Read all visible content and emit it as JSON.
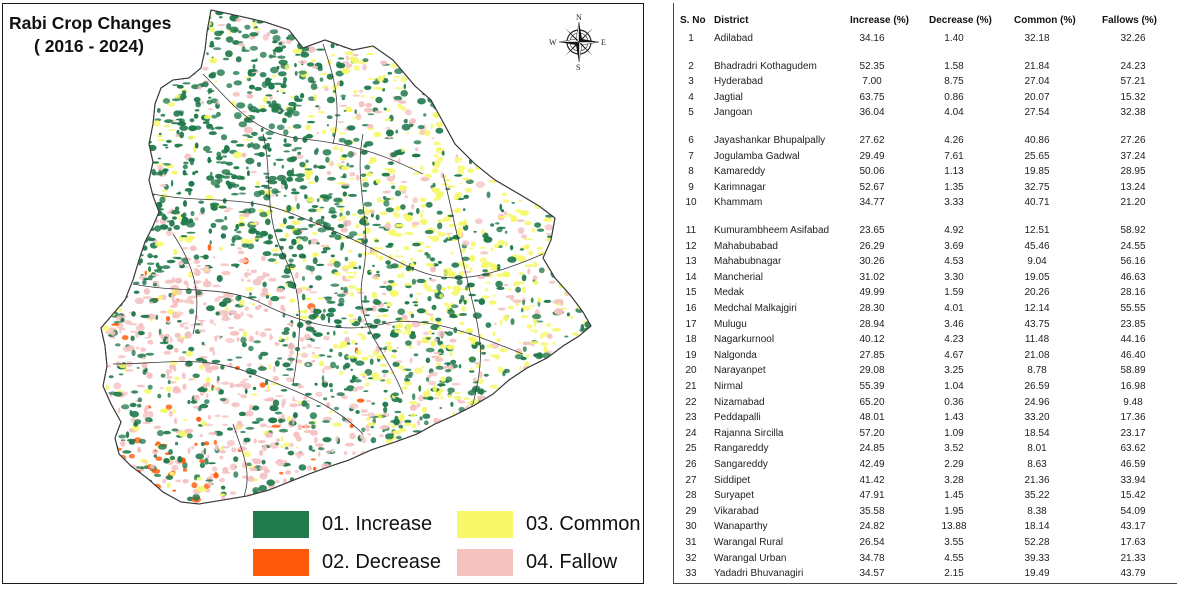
{
  "map": {
    "title": "Rabi Crop Changes",
    "subtitle": "( 2016 - 2024)",
    "compass": {
      "n": "N",
      "s": "S",
      "e": "E",
      "w": "W"
    },
    "colors": {
      "increase": "#217a4c",
      "decrease": "#ff5a0a",
      "common": "#f6f86a",
      "fallow": "#f5c1c1",
      "boundary": "#3a3a3a"
    },
    "legend": [
      {
        "label": "01. Increase",
        "color": "#217a4c"
      },
      {
        "label": "02. Decrease",
        "color": "#ff5a0a"
      },
      {
        "label": "03. Common",
        "color": "#f6f86a"
      },
      {
        "label": "04. Fallow",
        "color": "#f5c1c1"
      }
    ]
  },
  "table": {
    "headers": [
      "S. No",
      "District",
      "Increase (%)",
      "Decrease (%)",
      "Common (%)",
      "Fallows (%)"
    ],
    "rows": [
      {
        "sno": "1",
        "district": "Adilabad",
        "increase": "34.16",
        "decrease": "1.40",
        "common": "32.18",
        "fallows": "32.26"
      },
      {
        "sno": "2",
        "district": "Bhadradri Kothagudem",
        "increase": "52.35",
        "decrease": "1.58",
        "common": "21.84",
        "fallows": "24.23"
      },
      {
        "sno": "3",
        "district": "Hyderabad",
        "increase": "7.00",
        "decrease": "8.75",
        "common": "27.04",
        "fallows": "57.21"
      },
      {
        "sno": "4",
        "district": "Jagtial",
        "increase": "63.75",
        "decrease": "0.86",
        "common": "20.07",
        "fallows": "15.32"
      },
      {
        "sno": "5",
        "district": "Jangoan",
        "increase": "36.04",
        "decrease": "4.04",
        "common": "27.54",
        "fallows": "32.38"
      },
      {
        "sno": "6",
        "district": "Jayashankar Bhupalpally",
        "increase": "27.62",
        "decrease": "4.26",
        "common": "40.86",
        "fallows": "27.26"
      },
      {
        "sno": "7",
        "district": "Jogulamba Gadwal",
        "increase": "29.49",
        "decrease": "7.61",
        "common": "25.65",
        "fallows": "37.24"
      },
      {
        "sno": "8",
        "district": "Kamareddy",
        "increase": "50.06",
        "decrease": "1.13",
        "common": "19.85",
        "fallows": "28.95"
      },
      {
        "sno": "9",
        "district": "Karimnagar",
        "increase": "52.67",
        "decrease": "1.35",
        "common": "32.75",
        "fallows": "13.24"
      },
      {
        "sno": "10",
        "district": "Khammam",
        "increase": "34.77",
        "decrease": "3.33",
        "common": "40.71",
        "fallows": "21.20"
      },
      {
        "sno": "11",
        "district": "Kumurambheem Asifabad",
        "increase": "23.65",
        "decrease": "4.92",
        "common": "12.51",
        "fallows": "58.92"
      },
      {
        "sno": "12",
        "district": "Mahabubabad",
        "increase": "26.29",
        "decrease": "3.69",
        "common": "45.46",
        "fallows": "24.55"
      },
      {
        "sno": "13",
        "district": "Mahabubnagar",
        "increase": "30.26",
        "decrease": "4.53",
        "common": "9.04",
        "fallows": "56.16"
      },
      {
        "sno": "14",
        "district": "Mancherial",
        "increase": "31.02",
        "decrease": "3.30",
        "common": "19.05",
        "fallows": "46.63"
      },
      {
        "sno": "15",
        "district": "Medak",
        "increase": "49.99",
        "decrease": "1.59",
        "common": "20.26",
        "fallows": "28.16"
      },
      {
        "sno": "16",
        "district": "Medchal Malkajgiri",
        "increase": "28.30",
        "decrease": "4.01",
        "common": "12.14",
        "fallows": "55.55"
      },
      {
        "sno": "17",
        "district": "Mulugu",
        "increase": "28.94",
        "decrease": "3.46",
        "common": "43.75",
        "fallows": "23.85"
      },
      {
        "sno": "18",
        "district": "Nagarkurnool",
        "increase": "40.12",
        "decrease": "4.23",
        "common": "11.48",
        "fallows": "44.16"
      },
      {
        "sno": "19",
        "district": "Nalgonda",
        "increase": "27.85",
        "decrease": "4.67",
        "common": "21.08",
        "fallows": "46.40"
      },
      {
        "sno": "20",
        "district": "Narayanpet",
        "increase": "29.08",
        "decrease": "3.25",
        "common": "8.78",
        "fallows": "58.89"
      },
      {
        "sno": "21",
        "district": "Nirmal",
        "increase": "55.39",
        "decrease": "1.04",
        "common": "26.59",
        "fallows": "16.98"
      },
      {
        "sno": "22",
        "district": "Nizamabad",
        "increase": "65.20",
        "decrease": "0.36",
        "common": "24.96",
        "fallows": "9.48"
      },
      {
        "sno": "23",
        "district": "Peddapalli",
        "increase": "48.01",
        "decrease": "1.43",
        "common": "33.20",
        "fallows": "17.36"
      },
      {
        "sno": "24",
        "district": "Rajanna Sircilla",
        "increase": "57.20",
        "decrease": "1.09",
        "common": "18.54",
        "fallows": "23.17"
      },
      {
        "sno": "25",
        "district": "Rangareddy",
        "increase": "24.85",
        "decrease": "3.52",
        "common": "8.01",
        "fallows": "63.62"
      },
      {
        "sno": "26",
        "district": "Sangareddy",
        "increase": "42.49",
        "decrease": "2.29",
        "common": "8.63",
        "fallows": "46.59"
      },
      {
        "sno": "27",
        "district": "Siddipet",
        "increase": "41.42",
        "decrease": "3.28",
        "common": "21.36",
        "fallows": "33.94"
      },
      {
        "sno": "28",
        "district": "Suryapet",
        "increase": "47.91",
        "decrease": "1.45",
        "common": "35.22",
        "fallows": "15.42"
      },
      {
        "sno": "29",
        "district": "Vikarabad",
        "increase": "35.58",
        "decrease": "1.95",
        "common": "8.38",
        "fallows": "54.09"
      },
      {
        "sno": "30",
        "district": "Wanaparthy",
        "increase": "24.82",
        "decrease": "13.88",
        "common": "18.14",
        "fallows": "43.17"
      },
      {
        "sno": "31",
        "district": "Warangal Rural",
        "increase": "26.54",
        "decrease": "3.55",
        "common": "52.28",
        "fallows": "17.63"
      },
      {
        "sno": "32",
        "district": "Warangal Urban",
        "increase": "34.78",
        "decrease": "4.55",
        "common": "39.33",
        "fallows": "21.33"
      },
      {
        "sno": "33",
        "district": "Yadadri Bhuvanagiri",
        "increase": "34.57",
        "decrease": "2.15",
        "common": "19.49",
        "fallows": "43.79"
      }
    ]
  }
}
